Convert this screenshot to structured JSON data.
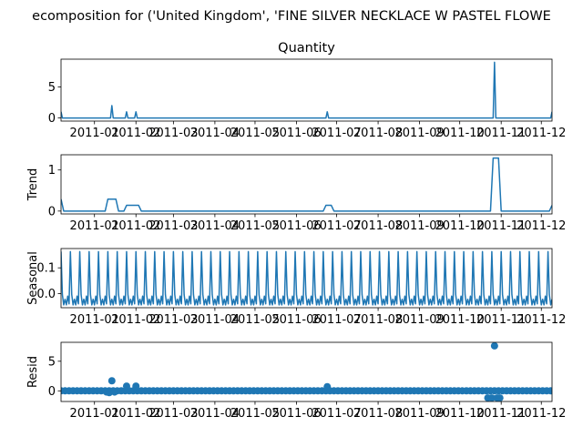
{
  "suptitle": "ecomposition for ('United Kingdom', 'FINE SILVER NECKLACE W PASTEL FLOWE",
  "colors": {
    "line": "#1f77b4",
    "axis": "#000000",
    "background": "#ffffff"
  },
  "x_ticks": [
    "2011-01",
    "2011-02",
    "2011-03",
    "2011-04",
    "2011-05",
    "2011-06",
    "2011-07",
    "2011-08",
    "2011-09",
    "2011-10",
    "2011-11",
    "2011-12"
  ],
  "chart_data": [
    {
      "type": "line",
      "title": "Quantity",
      "ylabel": "",
      "x_range": [
        "2010-12-07",
        "2011-12-09"
      ],
      "ylim": [
        -0.5,
        9.5
      ],
      "yticks": [
        "0",
        "5"
      ],
      "ytick_values": [
        0,
        5
      ],
      "baseline": 0,
      "spikes": [
        {
          "x": "2010-12-07",
          "y": 1
        },
        {
          "x": "2011-01-14",
          "y": 2
        },
        {
          "x": "2011-01-25",
          "y": 1
        },
        {
          "x": "2011-02-01",
          "y": 1
        },
        {
          "x": "2011-06-24",
          "y": 1
        },
        {
          "x": "2011-10-27",
          "y": 9
        },
        {
          "x": "2011-12-09",
          "y": 1
        }
      ]
    },
    {
      "type": "line",
      "title": "",
      "ylabel": "Trend",
      "x_range": [
        "2010-12-07",
        "2011-12-09"
      ],
      "ylim": [
        -0.07,
        1.37
      ],
      "yticks": [
        "0",
        "1"
      ],
      "ytick_values": [
        0,
        1
      ],
      "steps": [
        {
          "x": "2010-12-07",
          "y": 0.29
        },
        {
          "x": "2010-12-09",
          "y": 0
        },
        {
          "x": "2011-01-09",
          "y": 0
        },
        {
          "x": "2011-01-11",
          "y": 0.29
        },
        {
          "x": "2011-01-17",
          "y": 0.29
        },
        {
          "x": "2011-01-19",
          "y": 0
        },
        {
          "x": "2011-01-23",
          "y": 0
        },
        {
          "x": "2011-01-25",
          "y": 0.14
        },
        {
          "x": "2011-02-03",
          "y": 0.14
        },
        {
          "x": "2011-02-05",
          "y": 0
        },
        {
          "x": "2011-06-21",
          "y": 0
        },
        {
          "x": "2011-06-23",
          "y": 0.14
        },
        {
          "x": "2011-06-27",
          "y": 0.14
        },
        {
          "x": "2011-06-29",
          "y": 0
        },
        {
          "x": "2011-10-24",
          "y": 0
        },
        {
          "x": "2011-10-26",
          "y": 1.29
        },
        {
          "x": "2011-10-30",
          "y": 1.29
        },
        {
          "x": "2011-11-01",
          "y": 0
        },
        {
          "x": "2011-12-07",
          "y": 0
        },
        {
          "x": "2011-12-09",
          "y": 0.14
        }
      ]
    },
    {
      "type": "line",
      "title": "",
      "ylabel": "Seasonal",
      "x_range": [
        "2010-12-07",
        "2011-12-09"
      ],
      "ylim": [
        -0.055,
        0.175
      ],
      "yticks": [
        "0.0",
        "0.1"
      ],
      "ytick_values": [
        0,
        0.1
      ],
      "period_days": 7,
      "weekly_pattern": [
        0.163,
        -0.004,
        -0.044,
        -0.022,
        -0.044,
        -0.01,
        -0.04
      ]
    },
    {
      "type": "scatter",
      "title": "",
      "ylabel": "Resid",
      "x_range": [
        "2010-12-07",
        "2011-12-09"
      ],
      "ylim": [
        -1.8,
        8.2
      ],
      "yticks": [
        "0",
        "5"
      ],
      "ytick_values": [
        0,
        5
      ],
      "baseline": 0,
      "baseline_step_days": 3,
      "outliers": [
        {
          "x": "2011-01-10",
          "y": -0.2
        },
        {
          "x": "2011-01-12",
          "y": -0.3
        },
        {
          "x": "2011-01-14",
          "y": 1.7
        },
        {
          "x": "2011-01-16",
          "y": -0.2
        },
        {
          "x": "2011-01-25",
          "y": 0.8
        },
        {
          "x": "2011-02-01",
          "y": 0.8
        },
        {
          "x": "2011-06-24",
          "y": 0.7
        },
        {
          "x": "2011-10-22",
          "y": -1.2
        },
        {
          "x": "2011-10-25",
          "y": -1.2
        },
        {
          "x": "2011-10-27",
          "y": 7.6
        },
        {
          "x": "2011-10-29",
          "y": -1.2
        },
        {
          "x": "2011-10-31",
          "y": -1.2
        }
      ]
    }
  ]
}
